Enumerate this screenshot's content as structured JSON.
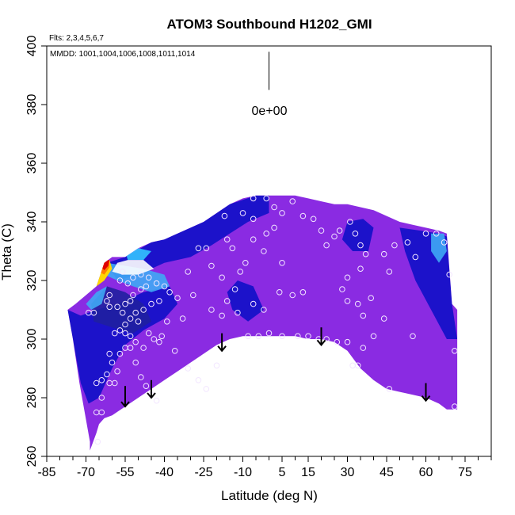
{
  "chart_data": {
    "type": "heatmap",
    "title": "ATOM3 Southbound H1202_GMI",
    "flights_text": "Flts: 2,3,4,5,6,7",
    "dates_text": "MMDD: 1001,1004,1006,1008,1011,1014",
    "xlabel": "Latitude (deg N)",
    "ylabel": "Theta (C)",
    "xlim": [
      -85,
      85
    ],
    "ylim": [
      260,
      400
    ],
    "x_ticks": [
      -85,
      -70,
      -55,
      -40,
      -25,
      -10,
      5,
      15,
      30,
      45,
      60,
      75
    ],
    "y_ticks": [
      260,
      280,
      300,
      320,
      340,
      360,
      380,
      400
    ],
    "scale_label": "0e+00",
    "colors": {
      "background_field": "#8a2be2",
      "deep_blue": "#1010c8",
      "navy": "#2020a0",
      "light_blue": "#3fa9f5",
      "cyan": "#33c4ff",
      "white": "#ffffff",
      "yellow": "#ffd700",
      "orange": "#ff7f00",
      "red": "#e00000"
    },
    "outline_upper": [
      [
        -68.5,
        265
      ],
      [
        -72.5,
        285
      ],
      [
        -75,
        300
      ],
      [
        -77,
        310
      ],
      [
        -74,
        312
      ],
      [
        -70,
        315
      ],
      [
        -66,
        318
      ],
      [
        -63,
        326
      ],
      [
        -60,
        328
      ],
      [
        -55,
        328
      ],
      [
        -50,
        331
      ],
      [
        -45,
        333
      ],
      [
        -40,
        334
      ],
      [
        -35,
        336
      ],
      [
        -30,
        338
      ],
      [
        -25,
        340
      ],
      [
        -20,
        343
      ],
      [
        -15,
        346
      ],
      [
        -10,
        348
      ],
      [
        -5,
        349
      ],
      [
        0,
        349
      ],
      [
        5,
        349
      ],
      [
        10,
        349
      ],
      [
        15,
        348
      ],
      [
        20,
        347
      ],
      [
        25,
        346
      ],
      [
        30,
        346
      ],
      [
        35,
        345
      ],
      [
        40,
        344
      ],
      [
        45,
        342
      ],
      [
        50,
        340
      ],
      [
        55,
        339
      ],
      [
        60,
        338
      ],
      [
        65,
        337
      ],
      [
        68,
        336
      ],
      [
        70,
        312
      ],
      [
        72,
        310
      ],
      [
        72,
        276
      ]
    ],
    "outline_lower": [
      [
        72,
        276
      ],
      [
        68,
        276
      ],
      [
        65,
        278
      ],
      [
        60,
        280
      ],
      [
        55,
        281
      ],
      [
        50,
        282
      ],
      [
        45,
        283
      ],
      [
        40,
        286
      ],
      [
        35,
        290
      ],
      [
        30,
        296
      ],
      [
        25,
        299
      ],
      [
        20,
        300
      ],
      [
        15,
        300
      ],
      [
        10,
        301
      ],
      [
        5,
        301
      ],
      [
        0,
        301
      ],
      [
        -5,
        301
      ],
      [
        -10,
        301
      ],
      [
        -15,
        300
      ],
      [
        -20,
        298
      ],
      [
        -25,
        295
      ],
      [
        -30,
        292
      ],
      [
        -35,
        289
      ],
      [
        -40,
        286
      ],
      [
        -45,
        283
      ],
      [
        -50,
        280
      ],
      [
        -55,
        277
      ],
      [
        -60,
        274
      ],
      [
        -63,
        273
      ],
      [
        -65,
        271
      ],
      [
        -66,
        268
      ],
      [
        -68.5,
        262
      ]
    ],
    "patches": [
      {
        "color": "deep_blue",
        "points": [
          [
            -75,
            300
          ],
          [
            -72,
            285
          ],
          [
            -69,
            278
          ],
          [
            -65,
            280
          ],
          [
            -60,
            290
          ],
          [
            -55,
            298
          ],
          [
            -48,
            303
          ],
          [
            -40,
            307
          ],
          [
            -35,
            312
          ],
          [
            -38,
            318
          ],
          [
            -48,
            316
          ],
          [
            -58,
            312
          ],
          [
            -66,
            310
          ],
          [
            -72,
            308
          ],
          [
            -77,
            310
          ]
        ]
      },
      {
        "color": "deep_blue",
        "points": [
          [
            -62,
            326
          ],
          [
            -55,
            328
          ],
          [
            -45,
            333
          ],
          [
            -35,
            336
          ],
          [
            -25,
            340
          ],
          [
            -15,
            346
          ],
          [
            -5,
            349
          ],
          [
            0,
            349
          ],
          [
            0,
            343
          ],
          [
            -8,
            340
          ],
          [
            -15,
            336
          ],
          [
            -22,
            332
          ],
          [
            -30,
            328
          ],
          [
            -40,
            326
          ],
          [
            -50,
            322
          ],
          [
            -58,
            320
          ]
        ]
      },
      {
        "color": "navy",
        "points": [
          [
            -68,
            312
          ],
          [
            -62,
            318
          ],
          [
            -55,
            316
          ],
          [
            -48,
            312
          ],
          [
            -45,
            306
          ],
          [
            -52,
            302
          ],
          [
            -60,
            304
          ],
          [
            -67,
            306
          ]
        ]
      },
      {
        "color": "light_blue",
        "points": [
          [
            -62,
            326
          ],
          [
            -55,
            325
          ],
          [
            -48,
            324
          ],
          [
            -40,
            322
          ],
          [
            -38,
            318
          ],
          [
            -45,
            316
          ],
          [
            -52,
            318
          ],
          [
            -58,
            320
          ],
          [
            -63,
            322
          ]
        ]
      },
      {
        "color": "cyan",
        "points": [
          [
            -55,
            330
          ],
          [
            -50,
            331
          ],
          [
            -45,
            330
          ],
          [
            -48,
            327
          ],
          [
            -54,
            327
          ]
        ]
      },
      {
        "color": "white",
        "points": [
          [
            -58,
            326
          ],
          [
            -54,
            327
          ],
          [
            -48,
            327
          ],
          [
            -44,
            324
          ],
          [
            -50,
            322
          ],
          [
            -56,
            322
          ],
          [
            -60,
            323
          ]
        ]
      },
      {
        "color": "light_blue",
        "points": [
          [
            -70,
            312
          ],
          [
            -66,
            316
          ],
          [
            -62,
            318
          ],
          [
            -64,
            312
          ],
          [
            -68,
            310
          ]
        ]
      },
      {
        "color": "deep_blue",
        "points": [
          [
            50,
            338
          ],
          [
            58,
            337
          ],
          [
            65,
            336
          ],
          [
            68,
            335
          ],
          [
            70,
            312
          ],
          [
            72,
            300
          ],
          [
            68,
            300
          ],
          [
            62,
            310
          ],
          [
            56,
            320
          ],
          [
            52,
            330
          ]
        ]
      },
      {
        "color": "light_blue",
        "points": [
          [
            62,
            336
          ],
          [
            67,
            336
          ],
          [
            68,
            330
          ],
          [
            65,
            326
          ],
          [
            62,
            330
          ]
        ]
      },
      {
        "color": "deep_blue",
        "points": [
          [
            30,
            340
          ],
          [
            36,
            341
          ],
          [
            40,
            338
          ],
          [
            38,
            330
          ],
          [
            32,
            330
          ],
          [
            28,
            334
          ]
        ]
      },
      {
        "color": "deep_blue",
        "points": [
          [
            -12,
            320
          ],
          [
            -6,
            318
          ],
          [
            -2,
            310
          ],
          [
            -8,
            306
          ],
          [
            -14,
            310
          ],
          [
            -16,
            316
          ]
        ]
      }
    ],
    "hot_spot": [
      {
        "color": "yellow",
        "points": [
          [
            -66,
            322
          ],
          [
            -63,
            326
          ],
          [
            -61,
            327
          ],
          [
            -60,
            324
          ],
          [
            -63,
            320
          ],
          [
            -66,
            318
          ]
        ]
      },
      {
        "color": "orange",
        "points": [
          [
            -65,
            323
          ],
          [
            -63,
            326
          ],
          [
            -61,
            326.5
          ],
          [
            -61,
            324.5
          ],
          [
            -63,
            322
          ]
        ]
      },
      {
        "color": "red",
        "points": [
          [
            -64,
            324.5
          ],
          [
            -62.5,
            327
          ],
          [
            -61,
            327
          ],
          [
            -61.5,
            325
          ],
          [
            -63,
            323.5
          ]
        ]
      }
    ],
    "observation_points": [
      [
        -65.5,
        265
      ],
      [
        -66,
        275
      ],
      [
        -64,
        275
      ],
      [
        -64,
        280
      ],
      [
        -66,
        285
      ],
      [
        -64,
        286
      ],
      [
        -62,
        288
      ],
      [
        -61,
        285
      ],
      [
        -59,
        285
      ],
      [
        -58,
        289
      ],
      [
        -60,
        292
      ],
      [
        -61,
        295
      ],
      [
        -57,
        295
      ],
      [
        -55,
        297
      ],
      [
        -53,
        297
      ],
      [
        -51,
        299
      ],
      [
        -53,
        301
      ],
      [
        -55,
        302
      ],
      [
        -57,
        303
      ],
      [
        -59,
        302
      ],
      [
        -55,
        305
      ],
      [
        -53,
        307
      ],
      [
        -51,
        309
      ],
      [
        -56,
        309
      ],
      [
        -58,
        311
      ],
      [
        -55,
        312
      ],
      [
        -53,
        313
      ],
      [
        -61,
        311
      ],
      [
        -62,
        313
      ],
      [
        -61,
        315
      ],
      [
        -67,
        309
      ],
      [
        -69,
        309
      ],
      [
        -52,
        315
      ],
      [
        -49,
        317
      ],
      [
        -47,
        318
      ],
      [
        -43,
        319
      ],
      [
        -40,
        318
      ],
      [
        -38,
        316
      ],
      [
        -35,
        314
      ],
      [
        -42,
        313
      ],
      [
        -45,
        312
      ],
      [
        -48,
        310
      ],
      [
        -50,
        306
      ],
      [
        -46,
        302
      ],
      [
        -44,
        300
      ],
      [
        -42,
        299
      ],
      [
        -48,
        297
      ],
      [
        -51,
        292
      ],
      [
        -49,
        287
      ],
      [
        -47,
        284
      ],
      [
        -45,
        281
      ],
      [
        -43,
        279
      ],
      [
        -56,
        323
      ],
      [
        -52,
        321
      ],
      [
        -49,
        322
      ],
      [
        -46,
        321
      ],
      [
        -57,
        320
      ],
      [
        -54,
        319
      ],
      [
        -31,
        323
      ],
      [
        -27,
        331
      ],
      [
        -24,
        331
      ],
      [
        -22,
        325
      ],
      [
        -18,
        321
      ],
      [
        -29,
        315
      ],
      [
        -33,
        307
      ],
      [
        -22,
        310
      ],
      [
        -16,
        313
      ],
      [
        -13,
        317
      ],
      [
        -11,
        323
      ],
      [
        -9,
        326
      ],
      [
        -14,
        331
      ],
      [
        -16,
        334
      ],
      [
        -6,
        334
      ],
      [
        -2,
        330
      ],
      [
        -1,
        336
      ],
      [
        2,
        338
      ],
      [
        -6,
        341
      ],
      [
        -10,
        343
      ],
      [
        -17,
        342
      ],
      [
        -6,
        348
      ],
      [
        -1,
        348
      ],
      [
        2,
        345
      ],
      [
        5,
        343
      ],
      [
        9,
        347
      ],
      [
        13,
        342
      ],
      [
        17,
        341
      ],
      [
        20,
        337
      ],
      [
        22,
        332
      ],
      [
        25,
        335
      ],
      [
        27,
        337
      ],
      [
        31,
        340
      ],
      [
        33,
        336
      ],
      [
        35,
        332
      ],
      [
        37,
        329
      ],
      [
        35,
        324
      ],
      [
        30,
        321
      ],
      [
        28,
        317
      ],
      [
        30,
        313
      ],
      [
        34,
        312
      ],
      [
        36,
        308
      ],
      [
        39,
        314
      ],
      [
        46,
        323
      ],
      [
        44,
        329
      ],
      [
        48,
        332
      ],
      [
        53,
        333
      ],
      [
        56,
        328
      ],
      [
        60,
        336
      ],
      [
        64,
        336
      ],
      [
        67,
        333
      ],
      [
        69,
        322
      ],
      [
        55,
        301
      ],
      [
        44,
        307
      ],
      [
        40,
        301
      ],
      [
        36,
        297
      ],
      [
        32,
        291
      ],
      [
        13,
        316
      ],
      [
        9,
        315
      ],
      [
        4,
        316
      ],
      [
        5,
        326
      ],
      [
        -2,
        310
      ],
      [
        -6,
        312
      ],
      [
        -12,
        309
      ],
      [
        -18,
        308
      ],
      [
        -8,
        301
      ],
      [
        -4,
        301
      ],
      [
        0,
        302
      ],
      [
        5,
        301
      ],
      [
        11,
        301
      ],
      [
        15,
        301
      ],
      [
        19,
        300
      ],
      [
        22,
        300
      ],
      [
        26,
        299
      ],
      [
        30,
        299
      ],
      [
        34,
        291
      ],
      [
        46,
        283
      ],
      [
        71,
        277
      ],
      [
        71,
        296
      ],
      [
        -39,
        306
      ],
      [
        -41,
        301
      ],
      [
        -36,
        296
      ],
      [
        -31,
        290
      ],
      [
        -27,
        286
      ],
      [
        -24,
        283
      ],
      [
        -20,
        291
      ]
    ],
    "arrows": [
      {
        "lat": -55,
        "theta_top": 284,
        "theta_bottom": 277
      },
      {
        "lat": -45,
        "theta_top": 286,
        "theta_bottom": 280
      },
      {
        "lat": -18,
        "theta_top": 302,
        "theta_bottom": 296
      },
      {
        "lat": 20,
        "theta_top": 304,
        "theta_bottom": 298
      },
      {
        "lat": 60,
        "theta_top": 285,
        "theta_bottom": 279
      }
    ],
    "scale_marker": {
      "lat": 0,
      "theta_top": 398,
      "theta_bottom": 385
    }
  }
}
